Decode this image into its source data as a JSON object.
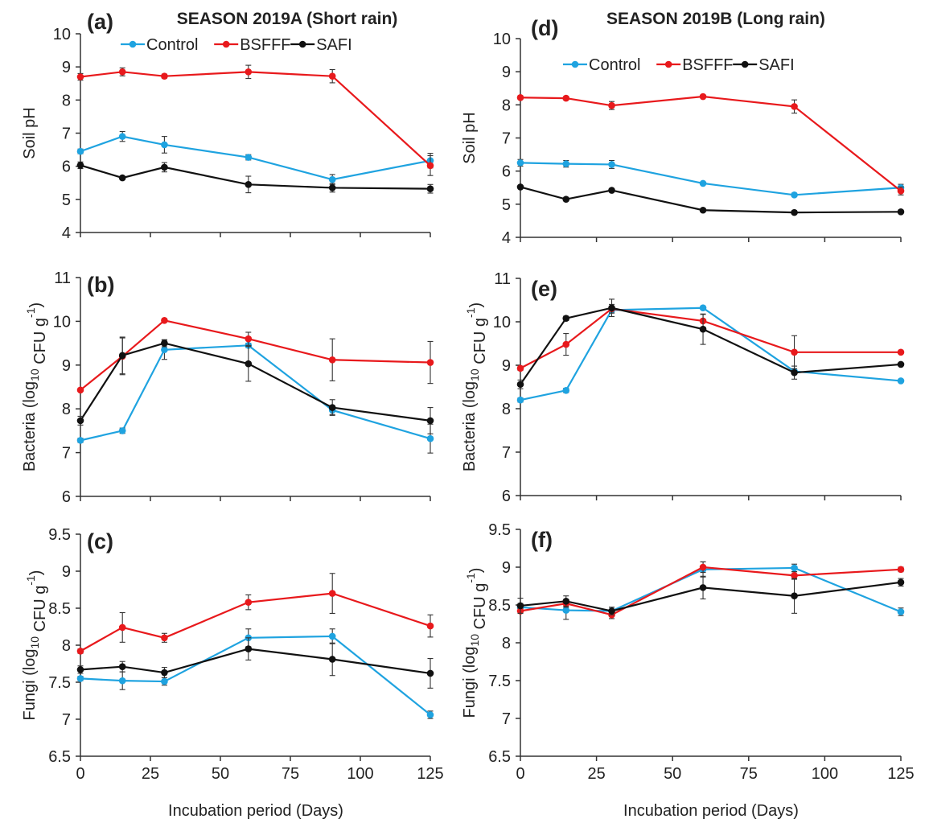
{
  "colors": {
    "Control": "#1fa3e0",
    "BSFFF": "#e8191c",
    "SAFI": "#111111"
  },
  "figure": {
    "season_a_title": "SEASON 2019A (Short rain)",
    "season_b_title": "SEASON 2019B (Long rain)",
    "x_axis_title": "Incubation period (Days)"
  },
  "chart_data": [
    {
      "panel": "(a)",
      "type": "line",
      "ylabel": "Soil pH",
      "xlabel": "Incubation period (Days)",
      "ylim": [
        4,
        10
      ],
      "ystep": 1,
      "yticks": [
        "4",
        "5",
        "6",
        "7",
        "8",
        "9",
        "10"
      ],
      "xlim": [
        0,
        125
      ],
      "xticks": [
        "0",
        "25",
        "50",
        "75",
        "100",
        "125"
      ],
      "x": [
        0,
        15,
        30,
        60,
        90,
        125
      ],
      "legend": "top",
      "series": [
        {
          "name": "Control",
          "values": [
            6.45,
            6.9,
            6.65,
            6.27,
            5.6,
            6.17
          ],
          "err": [
            0.07,
            0.15,
            0.25,
            0.08,
            0.15,
            0.22
          ]
        },
        {
          "name": "BSFFF",
          "values": [
            8.7,
            8.85,
            8.72,
            8.85,
            8.72,
            6.02
          ],
          "err": [
            0.1,
            0.12,
            0.06,
            0.2,
            0.2,
            0.3
          ]
        },
        {
          "name": "SAFI",
          "values": [
            6.03,
            5.65,
            5.97,
            5.45,
            5.35,
            5.32
          ],
          "err": [
            0.1,
            0.03,
            0.14,
            0.25,
            0.13,
            0.13
          ]
        }
      ]
    },
    {
      "panel": "(b)",
      "type": "line",
      "ylabel": "Bacteria (log10 CFU g-1)",
      "xlabel": "Incubation period (Days)",
      "ylim": [
        6,
        11
      ],
      "ystep": 1,
      "yticks": [
        "6",
        "7",
        "8",
        "9",
        "10",
        "11"
      ],
      "xlim": [
        0,
        125
      ],
      "xticks": [
        "0",
        "25",
        "50",
        "75",
        "100",
        "125"
      ],
      "x": [
        0,
        15,
        30,
        60,
        90,
        125
      ],
      "series": [
        {
          "name": "Control",
          "values": [
            7.28,
            7.5,
            9.35,
            9.45,
            7.97,
            7.32
          ],
          "err": [
            0.05,
            0.06,
            0.22,
            0.05,
            0.1,
            0.33
          ]
        },
        {
          "name": "BSFFF",
          "values": [
            8.43,
            9.2,
            10.02,
            9.6,
            9.12,
            9.06
          ],
          "err": [
            0.02,
            0.42,
            0.02,
            0.15,
            0.48,
            0.48
          ]
        },
        {
          "name": "SAFI",
          "values": [
            7.73,
            9.22,
            9.5,
            9.03,
            8.03,
            7.73
          ],
          "err": [
            0.1,
            0.42,
            0.08,
            0.4,
            0.18,
            0.3
          ]
        }
      ]
    },
    {
      "panel": "(c)",
      "type": "line",
      "ylabel": "Fungi (log10 CFU g-1)",
      "xlabel": "Incubation period (Days)",
      "ylim": [
        6.5,
        9.5
      ],
      "ystep": 0.5,
      "yticks": [
        "6.5",
        "7",
        "7.5",
        "8",
        "8.5",
        "9",
        "9.5"
      ],
      "xlim": [
        0,
        125
      ],
      "xticks": [
        "0",
        "25",
        "50",
        "75",
        "100",
        "125"
      ],
      "x": [
        0,
        15,
        30,
        60,
        90,
        125
      ],
      "series": [
        {
          "name": "Control",
          "values": [
            7.55,
            7.52,
            7.51,
            8.1,
            8.12,
            7.06
          ],
          "err": [
            0.03,
            0.12,
            0.05,
            0.12,
            0.1,
            0.05
          ]
        },
        {
          "name": "BSFFF",
          "values": [
            7.92,
            8.24,
            8.1,
            8.58,
            8.7,
            8.26
          ],
          "err": [
            0.03,
            0.2,
            0.06,
            0.1,
            0.27,
            0.15
          ]
        },
        {
          "name": "SAFI",
          "values": [
            7.67,
            7.71,
            7.63,
            7.95,
            7.81,
            7.62
          ],
          "err": [
            0.05,
            0.07,
            0.07,
            0.15,
            0.22,
            0.2
          ]
        }
      ]
    },
    {
      "panel": "(d)",
      "type": "line",
      "ylabel": "Soil pH",
      "xlabel": "Incubation period (Days)",
      "ylim": [
        4,
        10
      ],
      "ystep": 1,
      "yticks": [
        "4",
        "5",
        "6",
        "7",
        "8",
        "9",
        "10"
      ],
      "xlim": [
        0,
        125
      ],
      "xticks": [
        "0",
        "25",
        "50",
        "75",
        "100",
        "125"
      ],
      "x": [
        0,
        15,
        30,
        60,
        90,
        125
      ],
      "legend": "top",
      "series": [
        {
          "name": "Control",
          "values": [
            6.25,
            6.22,
            6.2,
            5.63,
            5.28,
            5.5
          ],
          "err": [
            0.1,
            0.1,
            0.12,
            0.03,
            0.05,
            0.1
          ]
        },
        {
          "name": "BSFFF",
          "values": [
            8.22,
            8.2,
            7.98,
            8.25,
            7.95,
            5.4
          ],
          "err": [
            0.05,
            0.05,
            0.12,
            0.05,
            0.2,
            0.12
          ]
        },
        {
          "name": "SAFI",
          "values": [
            5.52,
            5.15,
            5.42,
            4.82,
            4.75,
            4.77
          ],
          "err": [
            0.03,
            0.05,
            0.05,
            0.03,
            0.03,
            0.03
          ]
        }
      ]
    },
    {
      "panel": "(e)",
      "type": "line",
      "ylabel": "Bacteria (log10 CFU g-1)",
      "xlabel": "Incubation period (Days)",
      "ylim": [
        6,
        11
      ],
      "ystep": 1,
      "yticks": [
        "6",
        "7",
        "8",
        "9",
        "10",
        "11"
      ],
      "xlim": [
        0,
        125
      ],
      "xticks": [
        "0",
        "25",
        "50",
        "75",
        "100",
        "125"
      ],
      "x": [
        0,
        15,
        30,
        60,
        90,
        125
      ],
      "series": [
        {
          "name": "Control",
          "values": [
            8.2,
            8.42,
            10.27,
            10.32,
            8.86,
            8.64
          ],
          "err": [
            0.05,
            0.05,
            0.05,
            0.03,
            0.05,
            0.03
          ]
        },
        {
          "name": "BSFFF",
          "values": [
            8.93,
            9.48,
            10.3,
            10.02,
            9.3,
            9.3
          ],
          "err": [
            0.05,
            0.25,
            0.1,
            0.15,
            0.38,
            0.03
          ]
        },
        {
          "name": "SAFI",
          "values": [
            8.56,
            10.08,
            10.32,
            9.83,
            8.83,
            9.02
          ],
          "err": [
            0.1,
            0.05,
            0.2,
            0.35,
            0.15,
            0.03
          ]
        }
      ]
    },
    {
      "panel": "(f)",
      "type": "line",
      "ylabel": "Fungi (log10 CFU g-1)",
      "xlabel": "Incubation period (Days)",
      "ylim": [
        6.5,
        9.5
      ],
      "ystep": 0.5,
      "yticks": [
        "6.5",
        "7",
        "7.5",
        "8",
        "8.5",
        "9",
        "9.5"
      ],
      "xlim": [
        0,
        125
      ],
      "xticks": [
        "0",
        "25",
        "50",
        "75",
        "100",
        "125"
      ],
      "x": [
        0,
        15,
        30,
        60,
        90,
        125
      ],
      "series": [
        {
          "name": "Control",
          "values": [
            8.47,
            8.43,
            8.42,
            8.97,
            8.99,
            8.41
          ],
          "err": [
            0.05,
            0.12,
            0.05,
            0.1,
            0.05,
            0.05
          ]
        },
        {
          "name": "BSFFF",
          "values": [
            8.42,
            8.52,
            8.37,
            9.0,
            8.89,
            8.97
          ],
          "err": [
            0.03,
            0.05,
            0.05,
            0.07,
            0.05,
            0.03
          ]
        },
        {
          "name": "SAFI",
          "values": [
            8.49,
            8.55,
            8.42,
            8.73,
            8.62,
            8.8
          ],
          "err": [
            0.1,
            0.07,
            0.05,
            0.15,
            0.23,
            0.05
          ]
        }
      ]
    }
  ]
}
